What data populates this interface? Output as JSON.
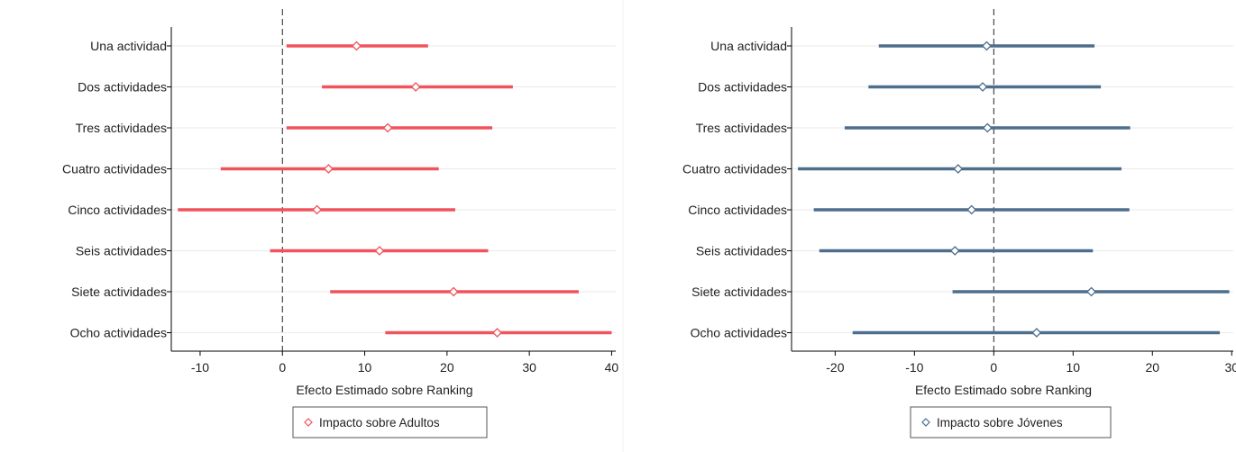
{
  "chart_data": [
    {
      "type": "dot-and-whisker",
      "categories": [
        "Una actividad",
        "Dos actividades",
        "Tres actividades",
        "Cuatro actividades",
        "Cinco actividades",
        "Seis actividades",
        "Siete actividades",
        "Ocho actividades"
      ],
      "estimates": [
        9,
        16.2,
        12.8,
        5.6,
        4.2,
        11.8,
        20.8,
        26.1
      ],
      "ci_low": [
        0.5,
        4.8,
        0.5,
        -7.5,
        -12.7,
        -1.5,
        5.8,
        12.5
      ],
      "ci_high": [
        17.7,
        28,
        25.5,
        19,
        21,
        25,
        36,
        40
      ],
      "xlabel": "Efecto Estimado sobre Ranking",
      "xticks": [
        -10,
        0,
        10,
        20,
        30,
        40
      ],
      "xlim": [
        -13.5,
        40.5
      ],
      "reference_line": 0,
      "legend": "Impacto sobre Adultos",
      "color": "#f1535d"
    },
    {
      "type": "dot-and-whisker",
      "categories": [
        "Una actividad",
        "Dos actividades",
        "Tres actividades",
        "Cuatro actividades",
        "Cinco actividades",
        "Seis actividades",
        "Siete actividades",
        "Ocho actividades"
      ],
      "estimates": [
        -0.9,
        -1.4,
        -0.8,
        -4.5,
        -2.8,
        -4.9,
        12.3,
        5.4
      ],
      "ci_low": [
        -14.5,
        -15.8,
        -18.8,
        -24.7,
        -22.7,
        -22,
        -5.2,
        -17.8
      ],
      "ci_high": [
        12.7,
        13.5,
        17.2,
        16.1,
        17.1,
        12.5,
        29.7,
        28.5
      ],
      "xlabel": "Efecto Estimado sobre Ranking",
      "xticks": [
        -20,
        -10,
        0,
        10,
        20,
        30
      ],
      "xlim": [
        -25.5,
        30.2
      ],
      "reference_line": 0,
      "legend": "Impacto sobre Jóvenes",
      "color": "#4e6e8e"
    }
  ]
}
